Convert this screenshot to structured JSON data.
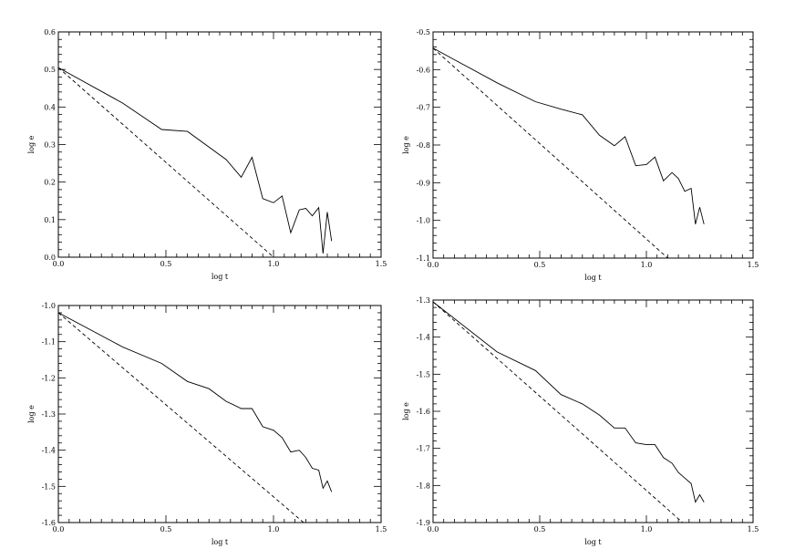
{
  "chart_data": [
    {
      "type": "line",
      "xlabel": "log t",
      "ylabel": "log e",
      "xlim": [
        0,
        1.5
      ],
      "ylim": [
        0,
        0.6
      ],
      "xticks": [
        0,
        0.5,
        1,
        1.5
      ],
      "xtick_labels": [
        "0.0",
        "0.5",
        "1.0",
        "1.5"
      ],
      "yticks": [
        0,
        0.1,
        0.2,
        0.3,
        0.4,
        0.5,
        0.6
      ],
      "ytick_labels": [
        "0.0",
        "0.1",
        "0.2",
        "0.3",
        "0.4",
        "0.5",
        "0.6"
      ],
      "series": [
        {
          "style": "solid",
          "x": [
            0,
            0.3,
            0.48,
            0.6,
            0.78,
            0.85,
            0.9,
            0.95,
            1.0,
            1.04,
            1.08,
            1.12,
            1.15,
            1.18,
            1.21,
            1.23,
            1.25,
            1.27
          ],
          "y": [
            0.505,
            0.41,
            0.34,
            0.335,
            0.26,
            0.213,
            0.266,
            0.156,
            0.145,
            0.163,
            0.065,
            0.126,
            0.13,
            0.11,
            0.132,
            0.01,
            0.12,
            0.043
          ]
        },
        {
          "style": "dashed",
          "x": [
            0,
            1.0
          ],
          "y": [
            0.505,
            0
          ]
        }
      ]
    },
    {
      "type": "line",
      "xlabel": "log t",
      "ylabel": "log e",
      "xlim": [
        0,
        1.5
      ],
      "ylim": [
        -1.1,
        -0.5
      ],
      "xticks": [
        0,
        0.5,
        1,
        1.5
      ],
      "xtick_labels": [
        "0.0",
        "0.5",
        "1.0",
        "1.5"
      ],
      "yticks": [
        -1.1,
        -1.0,
        -0.9,
        -0.8,
        -0.7,
        -0.6,
        -0.5
      ],
      "ytick_labels": [
        "-1.1",
        "-1.0",
        "-0.9",
        "-0.8",
        "-0.7",
        "-0.6",
        "-0.5"
      ],
      "series": [
        {
          "style": "solid",
          "x": [
            0,
            0.3,
            0.48,
            0.6,
            0.7,
            0.78,
            0.85,
            0.9,
            0.95,
            1.0,
            1.04,
            1.08,
            1.12,
            1.15,
            1.18,
            1.21,
            1.23,
            1.25,
            1.27
          ],
          "y": [
            -0.543,
            -0.635,
            -0.685,
            -0.705,
            -0.72,
            -0.774,
            -0.802,
            -0.778,
            -0.855,
            -0.852,
            -0.832,
            -0.895,
            -0.873,
            -0.889,
            -0.923,
            -0.915,
            -1.01,
            -0.965,
            -1.01
          ]
        },
        {
          "style": "dashed",
          "x": [
            0,
            1.1
          ],
          "y": [
            -0.543,
            -1.1
          ]
        }
      ]
    },
    {
      "type": "line",
      "xlabel": "log t",
      "ylabel": "log e",
      "xlim": [
        0,
        1.5
      ],
      "ylim": [
        -1.6,
        -1.0
      ],
      "xticks": [
        0,
        0.5,
        1,
        1.5
      ],
      "xtick_labels": [
        "0.0",
        "0.5",
        "1.0",
        "1.5"
      ],
      "yticks": [
        -1.6,
        -1.5,
        -1.4,
        -1.3,
        -1.2,
        -1.1,
        -1.0
      ],
      "ytick_labels": [
        "-1.6",
        "-1.5",
        "-1.4",
        "-1.3",
        "-1.2",
        "-1.1",
        "-1.0"
      ],
      "series": [
        {
          "style": "solid",
          "x": [
            0,
            0.3,
            0.48,
            0.6,
            0.7,
            0.78,
            0.85,
            0.9,
            0.95,
            1.0,
            1.04,
            1.08,
            1.12,
            1.15,
            1.18,
            1.21,
            1.23,
            1.25,
            1.27
          ],
          "y": [
            -1.02,
            -1.115,
            -1.16,
            -1.21,
            -1.23,
            -1.265,
            -1.285,
            -1.285,
            -1.335,
            -1.345,
            -1.365,
            -1.405,
            -1.4,
            -1.42,
            -1.45,
            -1.455,
            -1.505,
            -1.485,
            -1.515
          ]
        },
        {
          "style": "dashed",
          "x": [
            0,
            1.14
          ],
          "y": [
            -1.02,
            -1.6
          ]
        }
      ]
    },
    {
      "type": "line",
      "xlabel": "log t",
      "ylabel": "log e",
      "xlim": [
        0,
        1.5
      ],
      "ylim": [
        -1.9,
        -1.3
      ],
      "xticks": [
        0,
        0.5,
        1,
        1.5
      ],
      "xtick_labels": [
        "0.0",
        "0.5",
        "1.0",
        "1.5"
      ],
      "yticks": [
        -1.9,
        -1.8,
        -1.7,
        -1.6,
        -1.5,
        -1.4,
        -1.3
      ],
      "ytick_labels": [
        "-1.9",
        "-1.8",
        "-1.7",
        "-1.6",
        "-1.5",
        "-1.4",
        "-1.3"
      ],
      "series": [
        {
          "style": "solid",
          "x": [
            0,
            0.3,
            0.48,
            0.6,
            0.7,
            0.78,
            0.85,
            0.9,
            0.95,
            1.0,
            1.04,
            1.08,
            1.12,
            1.15,
            1.18,
            1.21,
            1.23,
            1.25,
            1.27
          ],
          "y": [
            -1.305,
            -1.44,
            -1.49,
            -1.555,
            -1.58,
            -1.61,
            -1.645,
            -1.645,
            -1.685,
            -1.69,
            -1.69,
            -1.725,
            -1.74,
            -1.765,
            -1.78,
            -1.795,
            -1.845,
            -1.825,
            -1.845
          ]
        },
        {
          "style": "dashed",
          "x": [
            0,
            1.17
          ],
          "y": [
            -1.305,
            -1.9
          ]
        }
      ]
    }
  ]
}
